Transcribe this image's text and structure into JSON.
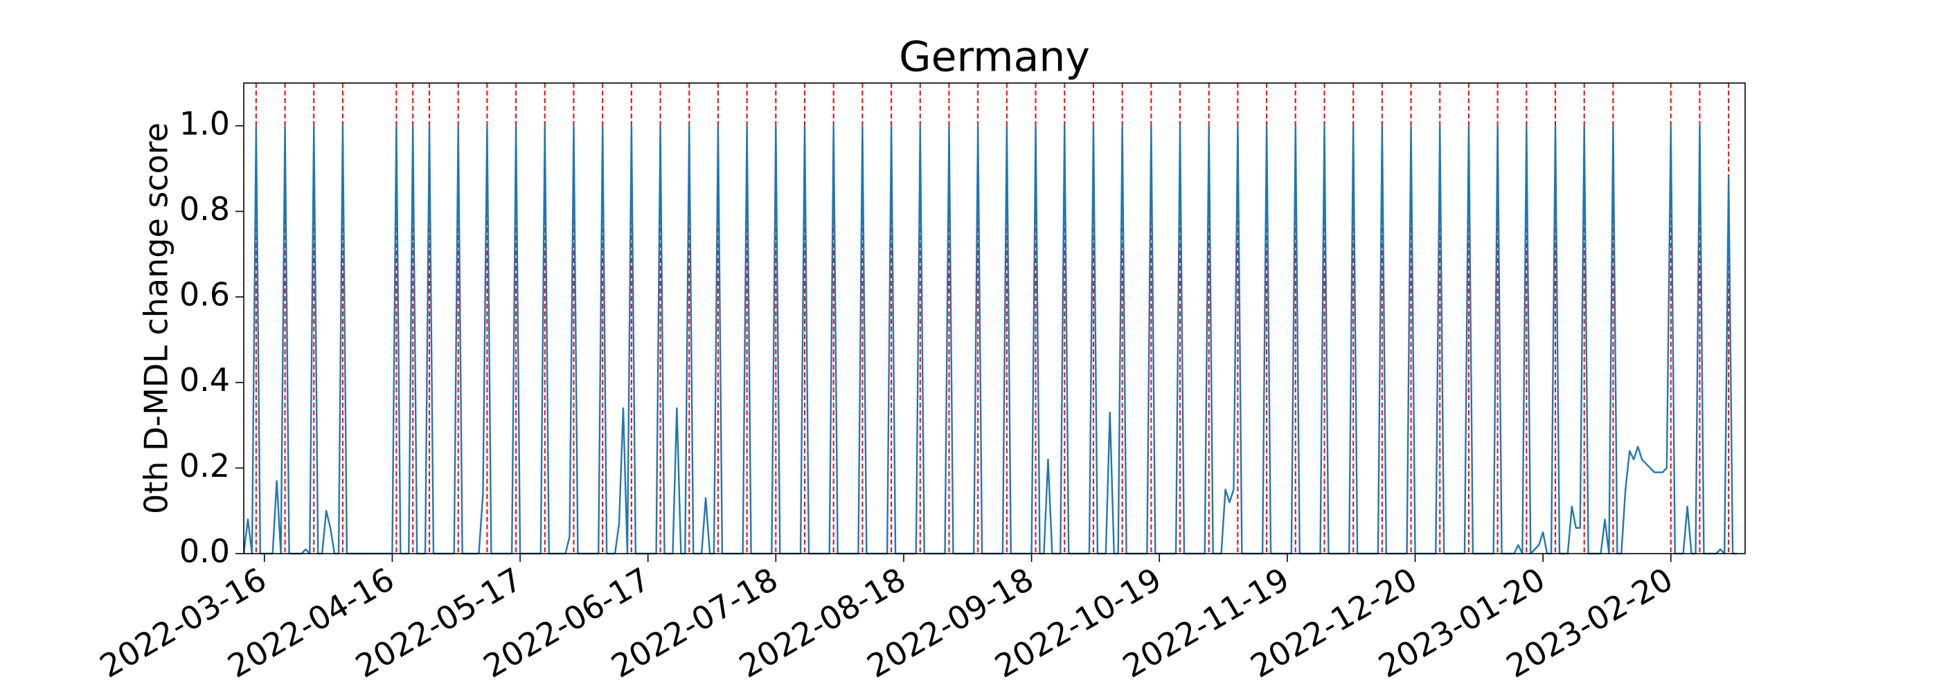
{
  "chart_data": {
    "type": "line",
    "title": "Germany",
    "y_label": "0th D-MDL change score",
    "xlim": [
      "2022-03-11",
      "2023-03-10"
    ],
    "xticks": [
      "2022-03-16",
      "2022-04-16",
      "2022-05-17",
      "2022-06-17",
      "2022-07-18",
      "2022-08-18",
      "2022-09-18",
      "2022-10-19",
      "2022-11-19",
      "2022-12-20",
      "2023-01-20",
      "2023-02-20"
    ],
    "ylim": [
      0,
      1.1
    ],
    "yticks": [
      {
        "value": 0,
        "label": "0.0"
      },
      {
        "value": 0.2,
        "label": "0.2"
      },
      {
        "value": 0.4,
        "label": "0.4"
      },
      {
        "value": 0.6,
        "label": "0.6"
      },
      {
        "value": 0.8,
        "label": "0.8"
      },
      {
        "value": 1,
        "label": "1.0"
      }
    ],
    "grid": false,
    "x": [
      "2022-03-11",
      "2022-03-12",
      "2022-03-13",
      "2022-03-14",
      "2022-03-15",
      "2022-03-18",
      "2022-03-19",
      "2022-03-20",
      "2022-03-21",
      "2022-03-22",
      "2022-03-25",
      "2022-03-26",
      "2022-03-27",
      "2022-03-28",
      "2022-03-29",
      "2022-03-30",
      "2022-03-31",
      "2022-04-01",
      "2022-04-02",
      "2022-04-03",
      "2022-04-04",
      "2022-04-05",
      "2022-04-16",
      "2022-04-17",
      "2022-04-18",
      "2022-04-20",
      "2022-04-21",
      "2022-04-22",
      "2022-04-24",
      "2022-04-25",
      "2022-04-26",
      "2022-05-01",
      "2022-05-02",
      "2022-05-03",
      "2022-05-07",
      "2022-05-08",
      "2022-05-09",
      "2022-05-10",
      "2022-05-15",
      "2022-05-16",
      "2022-05-17",
      "2022-05-22",
      "2022-05-23",
      "2022-05-24",
      "2022-05-28",
      "2022-05-29",
      "2022-05-30",
      "2022-05-31",
      "2022-06-05",
      "2022-06-06",
      "2022-06-07",
      "2022-06-09",
      "2022-06-10",
      "2022-06-11",
      "2022-06-12",
      "2022-06-13",
      "2022-06-14",
      "2022-06-19",
      "2022-06-20",
      "2022-06-21",
      "2022-06-23",
      "2022-06-24",
      "2022-06-25",
      "2022-06-26",
      "2022-06-27",
      "2022-06-28",
      "2022-06-30",
      "2022-07-01",
      "2022-07-02",
      "2022-07-03",
      "2022-07-04",
      "2022-07-05",
      "2022-07-10",
      "2022-07-11",
      "2022-07-12",
      "2022-07-17",
      "2022-07-18",
      "2022-07-19",
      "2022-07-24",
      "2022-07-25",
      "2022-07-26",
      "2022-07-31",
      "2022-08-01",
      "2022-08-02",
      "2022-08-07",
      "2022-08-08",
      "2022-08-09",
      "2022-08-14",
      "2022-08-15",
      "2022-08-16",
      "2022-08-21",
      "2022-08-22",
      "2022-08-23",
      "2022-08-28",
      "2022-08-29",
      "2022-08-30",
      "2022-09-04",
      "2022-09-05",
      "2022-09-06",
      "2022-09-11",
      "2022-09-12",
      "2022-09-13",
      "2022-09-18",
      "2022-09-19",
      "2022-09-20",
      "2022-09-21",
      "2022-09-22",
      "2022-09-23",
      "2022-09-25",
      "2022-09-26",
      "2022-09-27",
      "2022-10-02",
      "2022-10-03",
      "2022-10-04",
      "2022-10-06",
      "2022-10-07",
      "2022-10-08",
      "2022-10-09",
      "2022-10-10",
      "2022-10-11",
      "2022-10-16",
      "2022-10-17",
      "2022-10-18",
      "2022-10-23",
      "2022-10-24",
      "2022-10-25",
      "2022-10-30",
      "2022-10-31",
      "2022-11-01",
      "2022-11-03",
      "2022-11-04",
      "2022-11-05",
      "2022-11-06",
      "2022-11-07",
      "2022-11-08",
      "2022-11-13",
      "2022-11-14",
      "2022-11-15",
      "2022-11-20",
      "2022-11-21",
      "2022-11-22",
      "2022-11-27",
      "2022-11-28",
      "2022-11-29",
      "2022-12-04",
      "2022-12-05",
      "2022-12-06",
      "2022-12-11",
      "2022-12-12",
      "2022-12-13",
      "2022-12-18",
      "2022-12-19",
      "2022-12-20",
      "2022-12-25",
      "2022-12-26",
      "2022-12-27",
      "2023-01-01",
      "2023-01-02",
      "2023-01-03",
      "2023-01-08",
      "2023-01-09",
      "2023-01-10",
      "2023-01-13",
      "2023-01-14",
      "2023-01-15",
      "2023-01-16",
      "2023-01-17",
      "2023-01-19",
      "2023-01-20",
      "2023-01-21",
      "2023-01-22",
      "2023-01-23",
      "2023-01-24",
      "2023-01-26",
      "2023-01-27",
      "2023-01-28",
      "2023-01-29",
      "2023-01-30",
      "2023-01-31",
      "2023-02-03",
      "2023-02-04",
      "2023-02-05",
      "2023-02-06",
      "2023-02-07",
      "2023-02-08",
      "2023-02-09",
      "2023-02-10",
      "2023-02-11",
      "2023-02-12",
      "2023-02-13",
      "2023-02-14",
      "2023-02-15",
      "2023-02-16",
      "2023-02-17",
      "2023-02-18",
      "2023-02-19",
      "2023-02-20",
      "2023-02-21",
      "2023-02-23",
      "2023-02-24",
      "2023-02-25",
      "2023-02-26",
      "2023-02-27",
      "2023-02-28",
      "2023-03-03",
      "2023-03-04",
      "2023-03-05",
      "2023-03-06",
      "2023-03-07",
      "2023-03-08"
    ],
    "series": [
      {
        "color": "#1f77b4",
        "values": [
          0,
          0.08,
          0,
          1,
          0,
          0,
          0.17,
          0,
          1,
          0,
          0,
          0.01,
          0,
          1,
          0,
          0,
          0.1,
          0.06,
          0,
          0,
          1,
          0,
          0,
          1,
          0,
          0,
          1,
          0,
          0,
          1,
          0,
          0,
          1,
          0,
          0,
          0.14,
          1,
          0,
          0,
          1,
          0,
          0,
          1,
          0,
          0,
          0.04,
          1,
          0,
          0,
          1,
          0,
          0,
          0.07,
          0.34,
          0,
          1,
          0,
          0,
          1,
          0,
          0,
          0.34,
          0,
          0,
          1,
          0,
          0,
          0.13,
          0,
          0,
          1,
          0,
          0,
          1,
          0,
          0,
          1,
          0,
          0,
          1,
          0,
          0,
          1,
          0,
          0,
          1,
          0,
          0,
          1,
          0,
          0,
          1,
          0,
          0,
          1,
          0,
          0,
          1,
          0,
          0,
          1,
          0,
          0,
          1,
          0,
          0,
          0.22,
          0,
          0,
          1,
          0,
          0,
          1,
          0,
          0,
          0.33,
          0,
          0,
          1,
          0,
          0,
          1,
          0,
          0,
          1,
          0,
          0,
          1,
          0,
          0,
          0.15,
          0.12,
          0.15,
          1,
          0,
          0,
          1,
          0,
          0,
          1,
          0,
          0,
          1,
          0,
          0,
          1,
          0,
          0,
          1,
          0,
          0,
          1,
          0,
          0,
          1,
          0,
          0,
          1,
          0,
          0,
          1,
          0,
          0,
          0.02,
          0,
          1,
          0,
          0.02,
          0.05,
          0,
          0,
          1,
          0,
          0,
          0.11,
          0.06,
          0.06,
          1,
          0,
          0,
          0.08,
          0,
          1,
          0,
          0,
          0.15,
          0.24,
          0.22,
          0.25,
          0.22,
          0.21,
          0.2,
          0.19,
          0.19,
          0.19,
          0.2,
          1,
          0,
          0,
          0.11,
          0,
          0,
          1,
          0,
          0,
          0.01,
          0,
          0.88,
          0,
          0
        ]
      }
    ],
    "vlines": [
      "2022-03-14",
      "2022-03-21",
      "2022-03-28",
      "2022-04-04",
      "2022-04-17",
      "2022-04-21",
      "2022-04-25",
      "2022-05-02",
      "2022-05-09",
      "2022-05-16",
      "2022-05-23",
      "2022-05-30",
      "2022-06-06",
      "2022-06-13",
      "2022-06-20",
      "2022-06-27",
      "2022-07-04",
      "2022-07-11",
      "2022-07-18",
      "2022-07-25",
      "2022-08-01",
      "2022-08-08",
      "2022-08-15",
      "2022-08-22",
      "2022-08-29",
      "2022-09-05",
      "2022-09-12",
      "2022-09-19",
      "2022-09-26",
      "2022-10-03",
      "2022-10-10",
      "2022-10-17",
      "2022-10-24",
      "2022-10-31",
      "2022-11-07",
      "2022-11-14",
      "2022-11-21",
      "2022-11-28",
      "2022-12-05",
      "2022-12-12",
      "2022-12-19",
      "2022-12-26",
      "2023-01-02",
      "2023-01-09",
      "2023-01-16",
      "2023-01-23",
      "2023-01-30",
      "2023-02-06",
      "2023-02-20",
      "2023-02-27",
      "2023-03-06"
    ],
    "vline_color": "#ff0000"
  }
}
